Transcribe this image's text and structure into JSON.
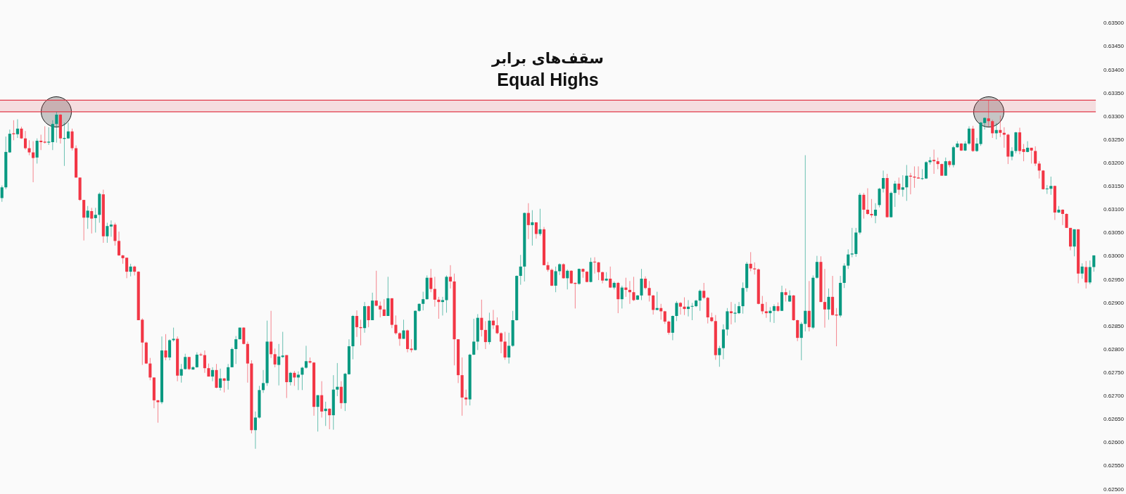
{
  "chart_data": {
    "type": "candlestick",
    "title": "سقف‌های برابر",
    "subtitle": "Equal Highs",
    "categories": [
      null,
      null,
      null,
      null,
      null,
      null,
      null,
      null,
      null,
      null,
      null,
      null,
      null,
      null,
      null,
      null,
      null,
      null,
      null,
      null,
      null,
      null,
      null,
      null,
      null,
      null,
      null,
      null,
      null,
      null,
      null,
      null,
      null,
      null,
      null,
      null,
      null,
      null,
      null,
      null,
      null,
      null,
      null,
      null,
      null,
      null,
      null,
      null,
      null,
      null,
      null,
      null,
      null,
      null,
      null,
      null,
      null,
      null,
      null,
      null,
      null,
      null,
      null,
      null,
      null,
      null,
      null,
      null,
      null,
      null,
      null,
      null,
      null,
      null,
      null,
      null,
      null,
      null,
      null,
      null,
      null,
      null,
      null,
      null,
      null,
      null,
      null,
      null,
      null,
      null,
      null,
      null,
      null,
      null,
      null,
      null,
      null,
      null,
      null,
      null,
      null,
      null,
      null,
      null,
      null,
      null,
      null,
      null,
      null,
      null,
      null,
      null,
      null,
      null,
      null,
      null,
      null,
      null,
      null,
      null,
      null,
      null,
      null,
      null,
      null,
      null,
      null,
      null,
      null,
      null,
      null,
      null,
      null,
      null,
      null,
      null,
      null,
      null,
      null,
      null,
      null,
      null,
      null,
      null,
      null,
      null,
      null,
      null,
      null,
      null,
      null,
      null,
      null,
      null,
      null,
      null,
      null,
      null,
      null,
      null,
      null,
      null,
      null,
      null,
      null,
      null,
      null,
      null,
      null,
      null,
      null,
      null,
      null,
      null,
      null,
      null,
      null,
      null,
      null,
      null,
      null,
      null,
      null,
      null,
      null,
      null,
      null,
      null,
      null,
      null,
      null,
      null,
      null,
      null,
      null,
      null,
      null,
      null,
      null,
      null,
      null,
      null,
      null,
      null,
      null,
      null,
      null,
      null,
      null,
      null,
      null,
      null,
      null,
      null,
      null,
      null,
      null,
      null,
      null,
      null,
      null,
      null,
      null,
      null,
      null,
      null,
      null,
      null,
      null,
      null,
      null,
      null,
      null,
      null,
      null,
      null,
      null,
      null,
      null,
      null,
      null,
      null,
      null,
      null,
      null,
      null,
      null,
      null,
      null,
      null,
      null,
      null,
      null,
      null,
      null,
      null,
      null,
      null,
      null,
      null,
      null,
      null,
      null,
      null,
      null,
      null,
      null,
      null,
      null,
      null,
      null,
      null,
      null,
      null,
      null,
      null,
      null,
      null,
      null,
      null,
      null
    ],
    "ohlc": [
      [
        0.63125,
        0.63152,
        0.63117,
        0.63148
      ],
      [
        0.63148,
        0.63257,
        0.63144,
        0.63224
      ],
      [
        0.63223,
        0.63272,
        0.63222,
        0.63263
      ],
      [
        0.63264,
        0.63292,
        0.63249,
        0.63262
      ],
      [
        0.63262,
        0.63294,
        0.63254,
        0.63274
      ],
      [
        0.63274,
        0.63278,
        0.63252,
        0.63253
      ],
      [
        0.63253,
        0.63269,
        0.63229,
        0.63232
      ],
      [
        0.63232,
        0.63249,
        0.63217,
        0.63223
      ],
      [
        0.63223,
        0.63247,
        0.63159,
        0.63211
      ],
      [
        0.63212,
        0.63253,
        0.63199,
        0.63248
      ],
      [
        0.63248,
        0.63261,
        0.63228,
        0.63245
      ],
      [
        0.63246,
        0.63279,
        0.63242,
        0.63244
      ],
      [
        0.63244,
        0.63277,
        0.63239,
        0.63246
      ],
      [
        0.63245,
        0.63292,
        0.63228,
        0.63284
      ],
      [
        0.63284,
        0.6331,
        0.63244,
        0.63304
      ],
      [
        0.63304,
        0.63305,
        0.63242,
        0.63253
      ],
      [
        0.63252,
        0.63287,
        0.63194,
        0.63254
      ],
      [
        0.63253,
        0.63287,
        0.63252,
        0.63268
      ],
      [
        0.63268,
        0.63274,
        0.63227,
        0.63232
      ],
      [
        0.63232,
        0.63238,
        0.63169,
        0.63169
      ],
      [
        0.63169,
        0.63169,
        0.63119,
        0.63121
      ],
      [
        0.63121,
        0.63121,
        0.63034,
        0.63083
      ],
      [
        0.63083,
        0.63108,
        0.63059,
        0.63098
      ],
      [
        0.63097,
        0.63104,
        0.63049,
        0.63081
      ],
      [
        0.63082,
        0.63104,
        0.63051,
        0.63089
      ],
      [
        0.63089,
        0.63137,
        0.63072,
        0.63134
      ],
      [
        0.63133,
        0.63143,
        0.63029,
        0.63043
      ],
      [
        0.63043,
        0.63072,
        0.63029,
        0.63065
      ],
      [
        0.63064,
        0.63077,
        0.63042,
        0.63068
      ],
      [
        0.63068,
        0.63072,
        0.63023,
        0.63033
      ],
      [
        0.63033,
        0.63053,
        0.63001,
        0.63002
      ],
      [
        0.63002,
        0.63003,
        0.62984,
        0.62996
      ],
      [
        0.62997,
        0.62997,
        0.62953,
        0.62967
      ],
      [
        0.62967,
        0.62984,
        0.62957,
        0.62978
      ],
      [
        0.62978,
        0.6298,
        0.62959,
        0.62967
      ],
      [
        0.62967,
        0.62968,
        0.62863,
        0.62863
      ],
      [
        0.62864,
        0.62867,
        0.62767,
        0.62815
      ],
      [
        0.62815,
        0.62817,
        0.62769,
        0.6277
      ],
      [
        0.6277,
        0.62782,
        0.62734,
        0.6274
      ],
      [
        0.6274,
        0.6274,
        0.62674,
        0.62691
      ],
      [
        0.62691,
        0.62692,
        0.62643,
        0.62687
      ],
      [
        0.62687,
        0.62828,
        0.62683,
        0.62798
      ],
      [
        0.62798,
        0.62833,
        0.62777,
        0.62783
      ],
      [
        0.62783,
        0.62822,
        0.62777,
        0.6282
      ],
      [
        0.6282,
        0.62847,
        0.62817,
        0.62823
      ],
      [
        0.62823,
        0.62828,
        0.62732,
        0.62744
      ],
      [
        0.62744,
        0.62769,
        0.62729,
        0.62758
      ],
      [
        0.62758,
        0.62791,
        0.62757,
        0.62784
      ],
      [
        0.62784,
        0.62784,
        0.62756,
        0.62758
      ],
      [
        0.62757,
        0.62764,
        0.62757,
        0.62762
      ],
      [
        0.62762,
        0.62794,
        0.62761,
        0.62789
      ],
      [
        0.62789,
        0.62793,
        0.62786,
        0.62788
      ],
      [
        0.62788,
        0.62798,
        0.6275,
        0.6276
      ],
      [
        0.6276,
        0.6277,
        0.62742,
        0.62742
      ],
      [
        0.62742,
        0.62762,
        0.62732,
        0.62756
      ],
      [
        0.62756,
        0.62769,
        0.62717,
        0.62718
      ],
      [
        0.62718,
        0.62759,
        0.62712,
        0.62738
      ],
      [
        0.62738,
        0.62739,
        0.62708,
        0.62733
      ],
      [
        0.62733,
        0.62769,
        0.62714,
        0.62762
      ],
      [
        0.62762,
        0.62804,
        0.62762,
        0.62801
      ],
      [
        0.62801,
        0.62829,
        0.62769,
        0.62822
      ],
      [
        0.62822,
        0.62847,
        0.62822,
        0.62847
      ],
      [
        0.62847,
        0.62848,
        0.62811,
        0.62812
      ],
      [
        0.62812,
        0.62817,
        0.62729,
        0.6277
      ],
      [
        0.6277,
        0.62777,
        0.6262,
        0.62627
      ],
      [
        0.62627,
        0.62667,
        0.62587,
        0.62654
      ],
      [
        0.62654,
        0.62722,
        0.62652,
        0.62713
      ],
      [
        0.62713,
        0.62756,
        0.62707,
        0.62728
      ],
      [
        0.62728,
        0.62862,
        0.62722,
        0.62817
      ],
      [
        0.62817,
        0.62883,
        0.62782,
        0.6279
      ],
      [
        0.6279,
        0.62802,
        0.62762,
        0.62768
      ],
      [
        0.62767,
        0.62812,
        0.62723,
        0.62785
      ],
      [
        0.62784,
        0.62838,
        0.62782,
        0.62787
      ],
      [
        0.62788,
        0.62788,
        0.62696,
        0.6273
      ],
      [
        0.6273,
        0.62752,
        0.62723,
        0.6275
      ],
      [
        0.6275,
        0.62754,
        0.62722,
        0.6274
      ],
      [
        0.6274,
        0.62753,
        0.62713,
        0.62746
      ],
      [
        0.62746,
        0.62763,
        0.62713,
        0.62761
      ],
      [
        0.62761,
        0.62808,
        0.62759,
        0.62775
      ],
      [
        0.62775,
        0.62783,
        0.6277,
        0.62772
      ],
      [
        0.62772,
        0.62773,
        0.62658,
        0.62677
      ],
      [
        0.62677,
        0.62702,
        0.62624,
        0.62702
      ],
      [
        0.62702,
        0.62732,
        0.62654,
        0.62667
      ],
      [
        0.62668,
        0.62688,
        0.62636,
        0.62673
      ],
      [
        0.62673,
        0.62674,
        0.62629,
        0.62659
      ],
      [
        0.62659,
        0.62745,
        0.62628,
        0.62714
      ],
      [
        0.62714,
        0.62771,
        0.627,
        0.6272
      ],
      [
        0.6272,
        0.62732,
        0.62673,
        0.62685
      ],
      [
        0.62685,
        0.6275,
        0.62668,
        0.62748
      ],
      [
        0.62747,
        0.62822,
        0.62746,
        0.62807
      ],
      [
        0.62807,
        0.62874,
        0.62779,
        0.62872
      ],
      [
        0.62872,
        0.62884,
        0.62827,
        0.62848
      ],
      [
        0.62848,
        0.62864,
        0.62809,
        0.62846
      ],
      [
        0.62846,
        0.62902,
        0.62836,
        0.62893
      ],
      [
        0.62893,
        0.62894,
        0.62848,
        0.62863
      ],
      [
        0.62863,
        0.62922,
        0.62863,
        0.62905
      ],
      [
        0.62905,
        0.62969,
        0.62893,
        0.62894
      ],
      [
        0.62894,
        0.62903,
        0.62869,
        0.62886
      ],
      [
        0.62886,
        0.62908,
        0.62872,
        0.62872
      ],
      [
        0.62872,
        0.62956,
        0.62872,
        0.6291
      ],
      [
        0.6291,
        0.6291,
        0.62846,
        0.62853
      ],
      [
        0.62853,
        0.62873,
        0.62832,
        0.62835
      ],
      [
        0.62835,
        0.62837,
        0.62808,
        0.62823
      ],
      [
        0.62823,
        0.62864,
        0.62823,
        0.62841
      ],
      [
        0.62841,
        0.62843,
        0.62794,
        0.62801
      ],
      [
        0.62802,
        0.62822,
        0.62794,
        0.62799
      ],
      [
        0.62799,
        0.62884,
        0.62798,
        0.62883
      ],
      [
        0.62883,
        0.62899,
        0.62881,
        0.62898
      ],
      [
        0.62898,
        0.62924,
        0.62884,
        0.62908
      ],
      [
        0.62908,
        0.62959,
        0.62907,
        0.62954
      ],
      [
        0.62954,
        0.62973,
        0.62923,
        0.6293
      ],
      [
        0.6293,
        0.62956,
        0.62892,
        0.62907
      ],
      [
        0.62907,
        0.62913,
        0.62866,
        0.62902
      ],
      [
        0.62902,
        0.62913,
        0.62873,
        0.62906
      ],
      [
        0.62906,
        0.62959,
        0.62879,
        0.62956
      ],
      [
        0.62956,
        0.62981,
        0.62931,
        0.62946
      ],
      [
        0.62946,
        0.62963,
        0.62766,
        0.62822
      ],
      [
        0.62822,
        0.62822,
        0.62728,
        0.62745
      ],
      [
        0.62745,
        0.62783,
        0.62658,
        0.62697
      ],
      [
        0.62697,
        0.62714,
        0.6268,
        0.62693
      ],
      [
        0.62693,
        0.62791,
        0.6268,
        0.62789
      ],
      [
        0.62789,
        0.62866,
        0.62788,
        0.62817
      ],
      [
        0.62817,
        0.62876,
        0.62799,
        0.62868
      ],
      [
        0.62868,
        0.62907,
        0.62828,
        0.62842
      ],
      [
        0.62842,
        0.62861,
        0.62801,
        0.62816
      ],
      [
        0.62816,
        0.62879,
        0.62811,
        0.62862
      ],
      [
        0.62862,
        0.62885,
        0.62844,
        0.62852
      ],
      [
        0.62852,
        0.62869,
        0.62833,
        0.62835
      ],
      [
        0.62835,
        0.62837,
        0.62792,
        0.62817
      ],
      [
        0.62817,
        0.62838,
        0.62778,
        0.62783
      ],
      [
        0.62783,
        0.62836,
        0.6277,
        0.62808
      ],
      [
        0.62808,
        0.62883,
        0.62806,
        0.62863
      ],
      [
        0.62863,
        0.62959,
        0.62862,
        0.62958
      ],
      [
        0.62958,
        0.63003,
        0.62939,
        0.62978
      ],
      [
        0.62978,
        0.63094,
        0.62946,
        0.63093
      ],
      [
        0.63093,
        0.63114,
        0.63037,
        0.63067
      ],
      [
        0.63067,
        0.63099,
        0.63023,
        0.63073
      ],
      [
        0.63073,
        0.63073,
        0.63038,
        0.63048
      ],
      [
        0.63048,
        0.63102,
        0.63044,
        0.63058
      ],
      [
        0.63058,
        0.63063,
        0.62981,
        0.62981
      ],
      [
        0.62981,
        0.62988,
        0.62967,
        0.62971
      ],
      [
        0.62971,
        0.62974,
        0.62936,
        0.62937
      ],
      [
        0.62937,
        0.62978,
        0.62923,
        0.62968
      ],
      [
        0.62968,
        0.62985,
        0.6296,
        0.62983
      ],
      [
        0.62983,
        0.62985,
        0.62952,
        0.62953
      ],
      [
        0.62953,
        0.62972,
        0.62929,
        0.62969
      ],
      [
        0.62969,
        0.6297,
        0.62941,
        0.62942
      ],
      [
        0.62943,
        0.62944,
        0.62888,
        0.62941
      ],
      [
        0.62941,
        0.62974,
        0.62939,
        0.62973
      ],
      [
        0.62973,
        0.62974,
        0.62954,
        0.62967
      ],
      [
        0.62967,
        0.62968,
        0.62944,
        0.62945
      ],
      [
        0.62945,
        0.62997,
        0.62944,
        0.62988
      ],
      [
        0.62988,
        0.62998,
        0.62963,
        0.62987
      ],
      [
        0.62987,
        0.62988,
        0.62949,
        0.62966
      ],
      [
        0.62966,
        0.62967,
        0.62942,
        0.62948
      ],
      [
        0.62948,
        0.62966,
        0.62947,
        0.62952
      ],
      [
        0.62952,
        0.62978,
        0.62932,
        0.62933
      ],
      [
        0.62933,
        0.62946,
        0.62929,
        0.62943
      ],
      [
        0.62943,
        0.62945,
        0.62878,
        0.62908
      ],
      [
        0.62908,
        0.62937,
        0.62888,
        0.62933
      ],
      [
        0.62933,
        0.62954,
        0.62913,
        0.62928
      ],
      [
        0.62928,
        0.62947,
        0.62898,
        0.62923
      ],
      [
        0.62923,
        0.62956,
        0.62904,
        0.62906
      ],
      [
        0.62907,
        0.62917,
        0.62906,
        0.62916
      ],
      [
        0.62916,
        0.62973,
        0.62906,
        0.62952
      ],
      [
        0.62952,
        0.62957,
        0.62929,
        0.62932
      ],
      [
        0.62932,
        0.62947,
        0.62903,
        0.62916
      ],
      [
        0.62916,
        0.62917,
        0.62875,
        0.62885
      ],
      [
        0.62885,
        0.62924,
        0.62884,
        0.62889
      ],
      [
        0.62889,
        0.62898,
        0.62864,
        0.62882
      ],
      [
        0.62882,
        0.62883,
        0.62855,
        0.6286
      ],
      [
        0.6286,
        0.62862,
        0.62832,
        0.62836
      ],
      [
        0.62836,
        0.62873,
        0.6282,
        0.62872
      ],
      [
        0.62872,
        0.62904,
        0.62861,
        0.629
      ],
      [
        0.629,
        0.62902,
        0.62875,
        0.62892
      ],
      [
        0.62892,
        0.62912,
        0.62874,
        0.62887
      ],
      [
        0.62887,
        0.62906,
        0.62871,
        0.62892
      ],
      [
        0.62892,
        0.629,
        0.62863,
        0.62893
      ],
      [
        0.62893,
        0.62907,
        0.62891,
        0.62905
      ],
      [
        0.62905,
        0.62929,
        0.62883,
        0.62926
      ],
      [
        0.62926,
        0.62943,
        0.62908,
        0.62911
      ],
      [
        0.62911,
        0.62913,
        0.62856,
        0.62869
      ],
      [
        0.62869,
        0.62879,
        0.62859,
        0.62861
      ],
      [
        0.62861,
        0.62874,
        0.62778,
        0.62788
      ],
      [
        0.62788,
        0.62808,
        0.62763,
        0.62803
      ],
      [
        0.62803,
        0.62854,
        0.62779,
        0.62843
      ],
      [
        0.62843,
        0.62889,
        0.6283,
        0.62882
      ],
      [
        0.62882,
        0.62902,
        0.62854,
        0.62878
      ],
      [
        0.62877,
        0.62898,
        0.62858,
        0.62879
      ],
      [
        0.62878,
        0.62902,
        0.62876,
        0.62893
      ],
      [
        0.62893,
        0.62944,
        0.62877,
        0.62932
      ],
      [
        0.62932,
        0.62988,
        0.62924,
        0.62984
      ],
      [
        0.62984,
        0.63009,
        0.62968,
        0.62974
      ],
      [
        0.62974,
        0.62987,
        0.62961,
        0.62972
      ],
      [
        0.62972,
        0.62974,
        0.62897,
        0.62898
      ],
      [
        0.62898,
        0.62915,
        0.62876,
        0.62882
      ],
      [
        0.62882,
        0.62902,
        0.62868,
        0.62878
      ],
      [
        0.62878,
        0.62891,
        0.62859,
        0.62883
      ],
      [
        0.62883,
        0.62897,
        0.62857,
        0.62893
      ],
      [
        0.62893,
        0.62901,
        0.62881,
        0.62883
      ],
      [
        0.62883,
        0.62937,
        0.62883,
        0.62923
      ],
      [
        0.62923,
        0.62931,
        0.62903,
        0.62917
      ],
      [
        0.62903,
        0.62927,
        0.62902,
        0.62916
      ],
      [
        0.62916,
        0.62917,
        0.62862,
        0.62863
      ],
      [
        0.62863,
        0.62864,
        0.62818,
        0.62825
      ],
      [
        0.62825,
        0.62859,
        0.62777,
        0.62855
      ],
      [
        0.62855,
        0.63217,
        0.62839,
        0.62883
      ],
      [
        0.62883,
        0.62947,
        0.62839,
        0.62848
      ],
      [
        0.62847,
        0.62959,
        0.62844,
        0.62954
      ],
      [
        0.62954,
        0.63001,
        0.62952,
        0.62988
      ],
      [
        0.62988,
        0.63,
        0.62902,
        0.62902
      ],
      [
        0.62902,
        0.62973,
        0.62847,
        0.62886
      ],
      [
        0.62886,
        0.62931,
        0.62864,
        0.62913
      ],
      [
        0.62913,
        0.62958,
        0.62873,
        0.62874
      ],
      [
        0.62875,
        0.62889,
        0.62807,
        0.62873
      ],
      [
        0.62873,
        0.62958,
        0.62869,
        0.62943
      ],
      [
        0.62943,
        0.62985,
        0.62932,
        0.6298
      ],
      [
        0.6298,
        0.63015,
        0.62973,
        0.63004
      ],
      [
        0.63004,
        0.63061,
        0.62998,
        0.63006
      ],
      [
        0.63005,
        0.63061,
        0.62999,
        0.63051
      ],
      [
        0.63051,
        0.63136,
        0.63047,
        0.63132
      ],
      [
        0.63132,
        0.63136,
        0.63081,
        0.631
      ],
      [
        0.631,
        0.63146,
        0.63089,
        0.63091
      ],
      [
        0.63091,
        0.63123,
        0.63083,
        0.63088
      ],
      [
        0.63087,
        0.63114,
        0.63071,
        0.631
      ],
      [
        0.6311,
        0.63147,
        0.63105,
        0.63145
      ],
      [
        0.63145,
        0.63184,
        0.63137,
        0.63168
      ],
      [
        0.63168,
        0.63177,
        0.63083,
        0.63084
      ],
      [
        0.63084,
        0.63139,
        0.63083,
        0.63136
      ],
      [
        0.63136,
        0.63162,
        0.63106,
        0.63156
      ],
      [
        0.63156,
        0.63169,
        0.63132,
        0.63143
      ],
      [
        0.63143,
        0.63174,
        0.63128,
        0.63148
      ],
      [
        0.63148,
        0.63196,
        0.63119,
        0.63173
      ],
      [
        0.63173,
        0.63179,
        0.63133,
        0.63171
      ],
      [
        0.63171,
        0.63193,
        0.63147,
        0.63169
      ],
      [
        0.63169,
        0.63193,
        0.63167,
        0.63167
      ],
      [
        0.63166,
        0.63187,
        0.63164,
        0.63167
      ],
      [
        0.63167,
        0.63204,
        0.63166,
        0.63202
      ],
      [
        0.63202,
        0.63213,
        0.63197,
        0.63206
      ],
      [
        0.63207,
        0.63229,
        0.63177,
        0.63204
      ],
      [
        0.63204,
        0.63212,
        0.63187,
        0.63198
      ],
      [
        0.63198,
        0.63199,
        0.63173,
        0.63173
      ],
      [
        0.63173,
        0.63212,
        0.63173,
        0.63204
      ],
      [
        0.63204,
        0.63206,
        0.63191,
        0.63196
      ],
      [
        0.63196,
        0.63237,
        0.63191,
        0.63234
      ],
      [
        0.63234,
        0.63247,
        0.63233,
        0.63242
      ],
      [
        0.63242,
        0.63243,
        0.63226,
        0.63227
      ],
      [
        0.63227,
        0.63247,
        0.63226,
        0.63242
      ],
      [
        0.63242,
        0.63279,
        0.63239,
        0.63274
      ],
      [
        0.63274,
        0.6328,
        0.63224,
        0.63226
      ],
      [
        0.63226,
        0.63254,
        0.63224,
        0.63242
      ],
      [
        0.63241,
        0.63288,
        0.63237,
        0.63287
      ],
      [
        0.63286,
        0.63298,
        0.63272,
        0.63297
      ],
      [
        0.63296,
        0.63335,
        0.63279,
        0.6329
      ],
      [
        0.6329,
        0.63293,
        0.63254,
        0.63264
      ],
      [
        0.63264,
        0.63286,
        0.63251,
        0.63271
      ],
      [
        0.63271,
        0.63302,
        0.63256,
        0.63265
      ],
      [
        0.63265,
        0.63277,
        0.63233,
        0.63261
      ],
      [
        0.63261,
        0.63263,
        0.63198,
        0.63214
      ],
      [
        0.63214,
        0.63234,
        0.63206,
        0.63226
      ],
      [
        0.63226,
        0.63267,
        0.63221,
        0.63266
      ],
      [
        0.63266,
        0.63276,
        0.63219,
        0.63226
      ],
      [
        0.6323,
        0.63241,
        0.63204,
        0.63224
      ],
      [
        0.63224,
        0.63247,
        0.63223,
        0.63233
      ],
      [
        0.63233,
        0.63233,
        0.63199,
        0.63227
      ],
      [
        0.63226,
        0.63236,
        0.63194,
        0.63199
      ],
      [
        0.63199,
        0.63204,
        0.63167,
        0.63184
      ],
      [
        0.63184,
        0.63185,
        0.63143,
        0.63144
      ],
      [
        0.63144,
        0.63153,
        0.63134,
        0.63145
      ],
      [
        0.63145,
        0.63171,
        0.63132,
        0.63151
      ],
      [
        0.63151,
        0.63152,
        0.63078,
        0.63094
      ],
      [
        0.63094,
        0.63108,
        0.63093,
        0.631
      ],
      [
        0.631,
        0.63101,
        0.63067,
        0.63091
      ],
      [
        0.63091,
        0.63092,
        0.63061,
        0.63061
      ],
      [
        0.63061,
        0.63061,
        0.63013,
        0.63021
      ],
      [
        0.63021,
        0.63058,
        0.63,
        0.63058
      ],
      [
        0.63058,
        0.63058,
        0.62942,
        0.62963
      ],
      [
        0.62963,
        0.62985,
        0.62952,
        0.62978
      ],
      [
        0.62977,
        0.6299,
        0.62931,
        0.62944
      ],
      [
        0.62944,
        0.62991,
        0.6294,
        0.62977
      ],
      [
        0.62977,
        0.63002,
        0.62967,
        0.63002
      ]
    ],
    "colors": [
      "#089981",
      "#089981",
      "#089981",
      "#f23645",
      "#089981",
      "#f23645",
      "#f23645",
      "#f23645",
      "#f23645",
      "#089981",
      "#f23645",
      "#f23645",
      "#089981",
      "#089981",
      "#089981",
      "#f23645",
      "#089981",
      "#089981",
      "#f23645",
      "#f23645",
      "#f23645",
      "#f23645",
      "#089981",
      "#f23645",
      "#089981",
      "#089981",
      "#f23645",
      "#089981",
      "#089981",
      "#f23645",
      "#f23645",
      "#f23645",
      "#f23645",
      "#089981",
      "#f23645",
      "#f23645",
      "#f23645",
      "#f23645",
      "#f23645",
      "#f23645",
      "#f23645",
      "#089981",
      "#f23645",
      "#089981",
      "#089981",
      "#f23645",
      "#089981",
      "#089981",
      "#f23645",
      "#089981",
      "#089981",
      "#f23645",
      "#f23645",
      "#f23645",
      "#089981",
      "#f23645",
      "#089981",
      "#f23645",
      "#089981",
      "#089981",
      "#089981",
      "#089981",
      "#f23645",
      "#f23645",
      "#f23645",
      "#089981",
      "#089981",
      "#089981",
      "#089981",
      "#f23645",
      "#f23645",
      "#089981",
      "#089981",
      "#f23645",
      "#089981",
      "#f23645",
      "#089981",
      "#089981",
      "#089981",
      "#f23645",
      "#f23645",
      "#089981",
      "#f23645",
      "#089981",
      "#f23645",
      "#089981",
      "#089981",
      "#f23645",
      "#089981",
      "#089981",
      "#089981",
      "#f23645",
      "#f23645",
      "#089981",
      "#f23645",
      "#089981",
      "#f23645",
      "#f23645",
      "#f23645",
      "#089981",
      "#f23645",
      "#f23645",
      "#f23645",
      "#089981",
      "#f23645",
      "#f23645",
      "#089981",
      "#089981",
      "#089981",
      "#089981",
      "#f23645",
      "#f23645",
      "#f23645",
      "#089981",
      "#089981",
      "#f23645",
      "#f23645",
      "#f23645",
      "#f23645",
      "#f23645",
      "#089981",
      "#089981",
      "#089981",
      "#f23645",
      "#f23645",
      "#089981",
      "#f23645",
      "#f23645",
      "#f23645",
      "#f23645",
      "#089981",
      "#089981",
      "#089981",
      "#089981",
      "#089981",
      "#f23645",
      "#089981",
      "#f23645",
      "#089981",
      "#f23645",
      "#f23645",
      "#f23645",
      "#089981",
      "#089981",
      "#f23645",
      "#089981",
      "#f23645",
      "#f23645",
      "#089981",
      "#f23645",
      "#f23645",
      "#089981",
      "#f23645",
      "#f23645",
      "#f23645",
      "#089981",
      "#f23645",
      "#089981",
      "#f23645",
      "#089981",
      "#f23645",
      "#f23645",
      "#f23645",
      "#089981",
      "#089981",
      "#f23645",
      "#f23645",
      "#f23645",
      "#089981",
      "#f23645",
      "#f23645",
      "#f23645",
      "#089981",
      "#089981",
      "#f23645",
      "#f23645",
      "#089981",
      "#089981",
      "#089981",
      "#089981",
      "#f23645",
      "#f23645",
      "#f23645",
      "#f23645",
      "#089981",
      "#089981",
      "#089981",
      "#f23645",
      "#089981",
      "#089981",
      "#089981",
      "#089981",
      "#f23645",
      "#f23645",
      "#f23645",
      "#f23645",
      "#f23645",
      "#089981",
      "#089981",
      "#f23645",
      "#089981",
      "#f23645",
      "#089981",
      "#f23645",
      "#f23645",
      "#089981",
      "#089981",
      "#f23645",
      "#089981",
      "#089981",
      "#f23645",
      "#f23645",
      "#089981",
      "#f23645",
      "#f23645",
      "#089981",
      "#089981",
      "#089981",
      "#089981",
      "#089981",
      "#089981",
      "#f23645",
      "#f23645",
      "#f23645",
      "#089981",
      "#089981",
      "#089981",
      "#f23645",
      "#089981",
      "#089981",
      "#f23645",
      "#089981",
      "#089981",
      "#f23645",
      "#f23645",
      "#f23645",
      "#089981",
      "#089981",
      "#089981",
      "#f23645",
      "#f23645",
      "#f23645",
      "#089981",
      "#f23645",
      "#089981",
      "#089981",
      "#f23645",
      "#089981",
      "#089981",
      "#f23645",
      "#089981",
      "#089981",
      "#089981",
      "#f23645",
      "#f23645",
      "#089981",
      "#f23645",
      "#f23645",
      "#f23645",
      "#089981",
      "#089981",
      "#f23645",
      "#f23645",
      "#089981",
      "#f23645",
      "#f23645",
      "#f23645",
      "#f23645",
      "#089981",
      "#089981",
      "#f23645",
      "#089981",
      "#f23645",
      "#f23645",
      "#f23645",
      "#089981",
      "#f23645",
      "#089981",
      "#f23645",
      "#089981",
      "#089981"
    ],
    "ylim": [
      0.6249,
      0.6355
    ],
    "yticks": [
      {
        "value": 0.625,
        "label": "0.62500"
      },
      {
        "value": 0.6255,
        "label": "0.62550"
      },
      {
        "value": 0.626,
        "label": "0.62600"
      },
      {
        "value": 0.6265,
        "label": "0.62650"
      },
      {
        "value": 0.627,
        "label": "0.62700"
      },
      {
        "value": 0.6275,
        "label": "0.62750"
      },
      {
        "value": 0.628,
        "label": "0.62800"
      },
      {
        "value": 0.6285,
        "label": "0.62850"
      },
      {
        "value": 0.629,
        "label": "0.62900"
      },
      {
        "value": 0.6295,
        "label": "0.62950"
      },
      {
        "value": 0.63,
        "label": "0.63000"
      },
      {
        "value": 0.6305,
        "label": "0.63050"
      },
      {
        "value": 0.631,
        "label": "0.63100"
      },
      {
        "value": 0.6315,
        "label": "0.63150"
      },
      {
        "value": 0.632,
        "label": "0.63200"
      },
      {
        "value": 0.6325,
        "label": "0.63250"
      },
      {
        "value": 0.633,
        "label": "0.63300"
      },
      {
        "value": 0.6335,
        "label": "0.63350"
      },
      {
        "value": 0.634,
        "label": "0.63400"
      },
      {
        "value": 0.6345,
        "label": "0.63450"
      },
      {
        "value": 0.635,
        "label": "0.63500"
      }
    ],
    "tick_labels": "y",
    "bands": [
      {
        "axis": "y",
        "from": 0.6331,
        "to": 0.63335,
        "color": "#e03a4a"
      }
    ],
    "ref_lines": [
      {
        "axis": "y",
        "value": 0.6331,
        "color": "#e03a4a"
      },
      {
        "axis": "y",
        "value": 0.63335,
        "color": "#e03a4a"
      }
    ]
  }
}
